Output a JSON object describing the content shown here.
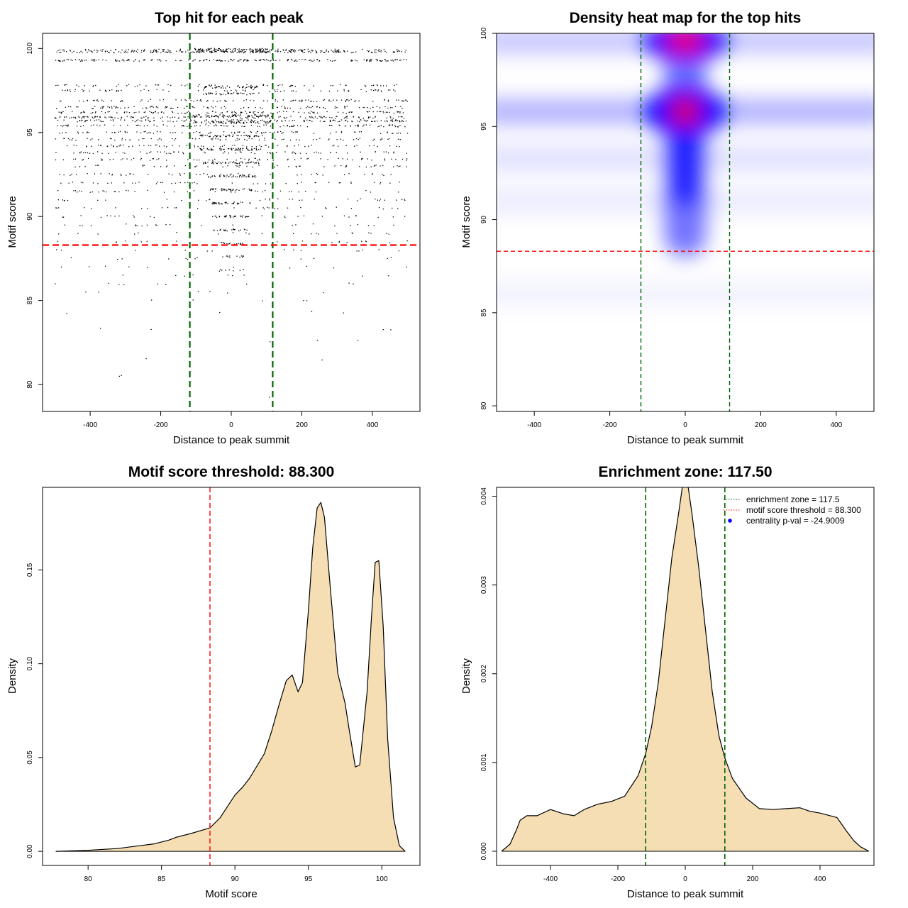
{
  "chart_data": [
    {
      "type": "scatter",
      "title": "Top hit for each peak",
      "xlabel": "Distance to peak summit",
      "ylabel": "Motif score",
      "xlim": [
        -535,
        535
      ],
      "ylim": [
        78.4,
        100.9
      ],
      "xticks": [
        -400,
        -200,
        0,
        200,
        400
      ],
      "xtick_labels": [
        "-400",
        "-200",
        "0",
        "200",
        "400"
      ],
      "yticks": [
        80,
        85,
        90,
        95,
        100
      ],
      "ytick_labels": [
        "80",
        "85",
        "90",
        "95",
        "100"
      ],
      "grid": false,
      "vlines": [
        {
          "x": -117.5,
          "color": "#006400"
        },
        {
          "x": 117.5,
          "color": "#006400"
        }
      ],
      "hlines": [
        {
          "y": 88.3,
          "color": "#ff0000"
        }
      ],
      "point_rows": [
        {
          "y": 99.9,
          "count": 120,
          "spread": 500
        },
        {
          "y": 99.8,
          "count": 170,
          "spread": 500
        },
        {
          "y": 99.3,
          "count": 190,
          "spread": 500
        },
        {
          "y": 97.8,
          "count": 75,
          "spread": 500
        },
        {
          "y": 97.5,
          "count": 75,
          "spread": 500
        },
        {
          "y": 96.9,
          "count": 100,
          "spread": 500
        },
        {
          "y": 96.5,
          "count": 110,
          "spread": 500
        },
        {
          "y": 96.2,
          "count": 120,
          "spread": 500
        },
        {
          "y": 95.9,
          "count": 150,
          "spread": 500
        },
        {
          "y": 95.7,
          "count": 150,
          "spread": 500
        },
        {
          "y": 95.4,
          "count": 110,
          "spread": 500
        },
        {
          "y": 95.0,
          "count": 90,
          "spread": 500
        },
        {
          "y": 94.6,
          "count": 80,
          "spread": 500
        },
        {
          "y": 94.2,
          "count": 75,
          "spread": 500
        },
        {
          "y": 93.8,
          "count": 70,
          "spread": 500
        },
        {
          "y": 93.4,
          "count": 70,
          "spread": 500
        },
        {
          "y": 93.0,
          "count": 55,
          "spread": 500
        },
        {
          "y": 92.5,
          "count": 50,
          "spread": 500
        },
        {
          "y": 92.0,
          "count": 45,
          "spread": 500
        },
        {
          "y": 91.5,
          "count": 40,
          "spread": 500
        },
        {
          "y": 91.0,
          "count": 35,
          "spread": 500
        },
        {
          "y": 90.5,
          "count": 32,
          "spread": 500
        },
        {
          "y": 90.0,
          "count": 28,
          "spread": 500
        },
        {
          "y": 89.5,
          "count": 25,
          "spread": 500
        },
        {
          "y": 89.0,
          "count": 22,
          "spread": 500
        },
        {
          "y": 88.5,
          "count": 18,
          "spread": 500
        },
        {
          "y": 88.0,
          "count": 14,
          "spread": 500
        },
        {
          "y": 87.5,
          "count": 12,
          "spread": 500
        },
        {
          "y": 87.0,
          "count": 10,
          "spread": 500
        },
        {
          "y": 86.5,
          "count": 9,
          "spread": 500
        },
        {
          "y": 86.0,
          "count": 9,
          "spread": 500
        },
        {
          "y": 85.5,
          "count": 6,
          "spread": 500
        },
        {
          "y": 85.0,
          "count": 5,
          "spread": 500
        },
        {
          "y": 84.3,
          "count": 4,
          "spread": 500
        },
        {
          "y": 83.3,
          "count": 4,
          "spread": 500
        },
        {
          "y": 82.6,
          "count": 3,
          "spread": 500
        },
        {
          "y": 81.5,
          "count": 2,
          "spread": 500
        },
        {
          "y": 80.5,
          "count": 2,
          "spread": 500
        },
        {
          "y": 79.3,
          "count": 1,
          "spread": 500
        }
      ],
      "central_rows": [
        {
          "y": 99.95,
          "count": 60,
          "spread": 110
        },
        {
          "y": 99.8,
          "count": 60,
          "spread": 110
        },
        {
          "y": 97.7,
          "count": 40,
          "spread": 80
        },
        {
          "y": 97.3,
          "count": 40,
          "spread": 80
        },
        {
          "y": 96.0,
          "count": 60,
          "spread": 110
        },
        {
          "y": 95.6,
          "count": 60,
          "spread": 110
        },
        {
          "y": 94.8,
          "count": 50,
          "spread": 90
        },
        {
          "y": 94.0,
          "count": 60,
          "spread": 90
        },
        {
          "y": 93.2,
          "count": 50,
          "spread": 80
        },
        {
          "y": 92.4,
          "count": 45,
          "spread": 70
        },
        {
          "y": 91.6,
          "count": 40,
          "spread": 60
        },
        {
          "y": 90.8,
          "count": 35,
          "spread": 55
        },
        {
          "y": 90.0,
          "count": 30,
          "spread": 50
        },
        {
          "y": 89.2,
          "count": 25,
          "spread": 50
        },
        {
          "y": 88.4,
          "count": 18,
          "spread": 40
        },
        {
          "y": 87.6,
          "count": 12,
          "spread": 40
        },
        {
          "y": 86.8,
          "count": 8,
          "spread": 40
        }
      ]
    },
    {
      "type": "heatmap",
      "title": "Density heat map for the top hits",
      "xlabel": "Distance to peak summit",
      "ylabel": "Motif score",
      "xlim": [
        -500,
        500
      ],
      "ylim": [
        79.7,
        100.0
      ],
      "xticks": [
        -400,
        -200,
        0,
        200,
        400
      ],
      "xtick_labels": [
        "-400",
        "-200",
        "0",
        "200",
        "400"
      ],
      "yticks": [
        80,
        85,
        90,
        95,
        100
      ],
      "ytick_labels": [
        "80",
        "85",
        "90",
        "95",
        "100"
      ],
      "colors": [
        "#ffffff",
        "#0000ff",
        "#ff0000"
      ],
      "hotspots": [
        {
          "x": 0,
          "y": 99.6,
          "intensity": 1.0
        },
        {
          "x": 0,
          "y": 95.8,
          "intensity": 0.95
        },
        {
          "x": 0,
          "y": 93.0,
          "intensity": 0.7
        },
        {
          "x": 0,
          "y": 90.5,
          "intensity": 0.35
        }
      ],
      "vlines": [
        {
          "x": -117.5,
          "color": "#006400"
        },
        {
          "x": 117.5,
          "color": "#006400"
        }
      ],
      "hlines": [
        {
          "y": 88.3,
          "color": "#ff0000"
        }
      ]
    },
    {
      "type": "area",
      "title": "Motif score threshold: 88.300",
      "xlabel": "Motif score",
      "ylabel": "Density",
      "xlim": [
        76.9,
        102.6
      ],
      "ylim": [
        -0.0075,
        0.194
      ],
      "xticks": [
        80,
        85,
        90,
        95,
        100
      ],
      "xtick_labels": [
        "80",
        "85",
        "90",
        "95",
        "100"
      ],
      "yticks": [
        0.0,
        0.05,
        0.1,
        0.15
      ],
      "ytick_labels": [
        "0.00",
        "0.05",
        "0.10",
        "0.15"
      ],
      "fill": "#f5deb3",
      "vlines": [
        {
          "x": 88.3,
          "color": "#ff0000"
        }
      ],
      "x": [
        77.8,
        80,
        82,
        83.5,
        84.5,
        85,
        85.5,
        86,
        87,
        88.3,
        89,
        89.5,
        90,
        90.5,
        91,
        92,
        92.5,
        93,
        93.5,
        93.9,
        94.3,
        94.6,
        95,
        95.3,
        95.6,
        95.85,
        96.1,
        96.5,
        97,
        97.5,
        97.8,
        98.2,
        98.5,
        99,
        99.3,
        99.55,
        99.8,
        100.1,
        100.4,
        100.8,
        101.2,
        101.6
      ],
      "y": [
        0.0,
        0.0006,
        0.0015,
        0.003,
        0.004,
        0.005,
        0.006,
        0.0075,
        0.0095,
        0.0125,
        0.018,
        0.024,
        0.03,
        0.034,
        0.039,
        0.052,
        0.064,
        0.078,
        0.091,
        0.094,
        0.085,
        0.09,
        0.128,
        0.162,
        0.183,
        0.186,
        0.178,
        0.14,
        0.095,
        0.079,
        0.064,
        0.045,
        0.046,
        0.085,
        0.125,
        0.154,
        0.155,
        0.12,
        0.06,
        0.018,
        0.003,
        0.0
      ]
    },
    {
      "type": "area",
      "title": "Enrichment zone: 117.50",
      "xlabel": "Distance to peak summit",
      "ylabel": "Density",
      "xlim": [
        -560,
        560
      ],
      "ylim": [
        -0.00016,
        0.0041
      ],
      "xticks": [
        -400,
        -200,
        0,
        200,
        400
      ],
      "xtick_labels": [
        "-400",
        "-200",
        "0",
        "200",
        "400"
      ],
      "yticks": [
        0.0,
        0.001,
        0.002,
        0.003,
        0.004
      ],
      "ytick_labels": [
        "0.000",
        "0.001",
        "0.002",
        "0.003",
        "0.004"
      ],
      "fill": "#f5deb3",
      "vlines": [
        {
          "x": -117.5,
          "color": "#006400"
        },
        {
          "x": 117.5,
          "color": "#006400"
        }
      ],
      "legend": {
        "position": "top-right",
        "entries": [
          {
            "label": "enrichment zone = 117.5",
            "color": "#006400",
            "style": "dotted-line"
          },
          {
            "label": "motif score threshold = 88.300",
            "color": "#ff0000",
            "style": "dotted-line"
          },
          {
            "label": "centrality p-val = -24.9009",
            "color": "#0000ff",
            "style": "point"
          }
        ]
      },
      "x": [
        -545,
        -520,
        -500,
        -490,
        -470,
        -440,
        -400,
        -360,
        -330,
        -300,
        -260,
        -220,
        -180,
        -140,
        -117.5,
        -100,
        -80,
        -60,
        -40,
        -20,
        -5,
        0,
        5,
        20,
        40,
        60,
        80,
        100,
        117.5,
        140,
        180,
        220,
        260,
        300,
        340,
        370,
        400,
        430,
        450,
        480,
        500,
        520,
        545
      ],
      "y": [
        0.0,
        8e-05,
        0.00025,
        0.00035,
        0.0004,
        0.0004,
        0.00047,
        0.00042,
        0.0004,
        0.00047,
        0.00053,
        0.00056,
        0.00062,
        0.00085,
        0.0011,
        0.0014,
        0.0019,
        0.0026,
        0.0033,
        0.0038,
        0.0042,
        0.0042,
        0.0042,
        0.0038,
        0.0032,
        0.0025,
        0.0018,
        0.0013,
        0.00105,
        0.00082,
        0.0006,
        0.00048,
        0.00047,
        0.00048,
        0.00049,
        0.00045,
        0.00043,
        0.0004,
        0.00038,
        0.00022,
        0.00012,
        5e-05,
        0.0
      ]
    }
  ]
}
